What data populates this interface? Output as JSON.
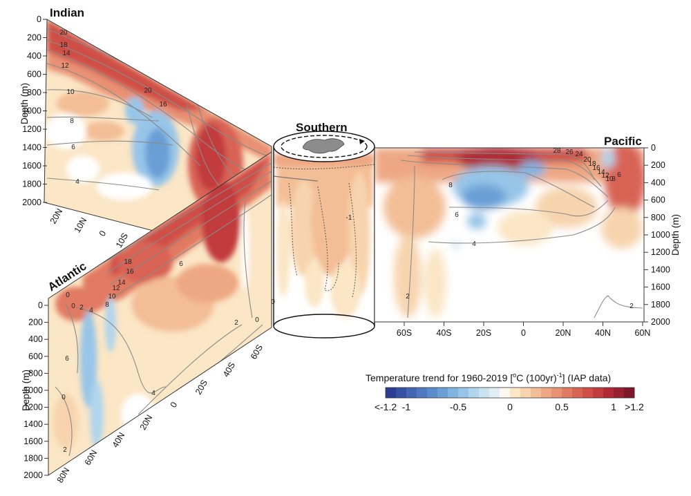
{
  "chart_data": {
    "type": "heatmap",
    "variable": "Temperature trend for 1960-2019 [°C (100yr)⁻¹] (IAP data)",
    "colorbar": {
      "title_parts": [
        "Temperature trend for 1960-2019 [",
        "o",
        "C (100yr)",
        "-1",
        "] (IAP data)"
      ],
      "levels": [
        -1.2,
        -1.1,
        -1.0,
        -0.9,
        -0.8,
        -0.7,
        -0.6,
        -0.5,
        -0.4,
        -0.3,
        -0.2,
        -0.1,
        0.0,
        0.1,
        0.2,
        0.3,
        0.4,
        0.5,
        0.6,
        0.7,
        0.8,
        0.9,
        1.0,
        1.1,
        1.2
      ],
      "colors": [
        "#2c3d93",
        "#3852a3",
        "#4566b3",
        "#5079bf",
        "#5c8ccb",
        "#6b9fd6",
        "#80b3e0",
        "#97c5e8",
        "#b1d5ec",
        "#cbe3ef",
        "#e2eef3",
        "#fdf8f0",
        "#fbe6c5",
        "#f7d4ad",
        "#f3be96",
        "#eea783",
        "#e89173",
        "#e17a62",
        "#d86454",
        "#cf4f47",
        "#c23b3e",
        "#b02a35",
        "#99202e",
        "#7e1828"
      ],
      "tick_labels": [
        "<-1.2",
        "-1",
        "-0.5",
        "0",
        "0.5",
        "1",
        ">1.2"
      ],
      "tick_values": [
        -1.2,
        -1.0,
        -0.5,
        0.0,
        0.5,
        1.0,
        1.2
      ]
    },
    "panels": [
      {
        "name": "Indian",
        "ylabel": "Depth (m)",
        "yticks": [
          "0",
          "200",
          "400",
          "600",
          "800",
          "1000",
          "1200",
          "1400",
          "1600",
          "1800",
          "2000"
        ],
        "xticks": [
          "20N",
          "10N",
          "0",
          "10S"
        ],
        "isotherm_labels": [
          "20",
          "18",
          "14",
          "12",
          "10",
          "8",
          "6",
          "4",
          "20",
          "16"
        ],
        "features": [
          {
            "region": "upper ocean 0-600 m",
            "trend": 0.7
          },
          {
            "region": "near 10N-0, 700-1700 m",
            "trend": -0.6
          },
          {
            "region": "10S-20S, 600-1500 m",
            "trend": 1.1
          },
          {
            "region": "deep 1000-2000 m",
            "trend": 0.2
          }
        ]
      },
      {
        "name": "Atlantic",
        "ylabel": "Depth (m)",
        "yticks": [
          "0",
          "200",
          "400",
          "600",
          "800",
          "1000",
          "1200",
          "1400",
          "1600",
          "1800",
          "2000"
        ],
        "xticks": [
          "80N",
          "60N",
          "40N",
          "20N",
          "0",
          "20S",
          "40S",
          "60S"
        ],
        "isotherm_labels": [
          "18",
          "16",
          "14",
          "12",
          "10",
          "8",
          "6",
          "4",
          "2",
          "0",
          "6",
          "4",
          "2",
          "0",
          "0",
          "2",
          "0"
        ],
        "features": [
          {
            "region": "subtropics 20N-40S, 0-800 m",
            "trend": 0.9
          },
          {
            "region": "near 60N, 200-1500 m",
            "trend": -0.5
          },
          {
            "region": "deep 1000-2000 m",
            "trend": 0.3
          }
        ]
      },
      {
        "name": "Southern",
        "contour_labels": [
          "0",
          "-1",
          "0"
        ],
        "features": [
          {
            "region": "surface layer",
            "trend": 0.6
          },
          {
            "region": "0-1200 m",
            "trend": 0.3
          }
        ]
      },
      {
        "name": "Pacific",
        "ylabel": "Depth (m)",
        "yticks": [
          "0",
          "200",
          "400",
          "600",
          "800",
          "1000",
          "1200",
          "1400",
          "1600",
          "1800",
          "2000"
        ],
        "xticks": [
          "60S",
          "40S",
          "20S",
          "0",
          "20N",
          "40N",
          "60N"
        ],
        "isotherm_labels": [
          "28",
          "26",
          "24",
          "20",
          "18",
          "16",
          "14",
          "12",
          "10",
          "8",
          "6",
          "8",
          "6",
          "4",
          "2",
          "2"
        ],
        "features": [
          {
            "region": "near surface, 0-200 m",
            "trend": 0.9
          },
          {
            "region": "30S-0, 200-700 m",
            "trend": -0.6
          },
          {
            "region": "southern deep 60S-40S",
            "trend": 0.3
          },
          {
            "region": "40N-60N, 0-600 m",
            "trend": 0.8
          }
        ]
      }
    ]
  }
}
